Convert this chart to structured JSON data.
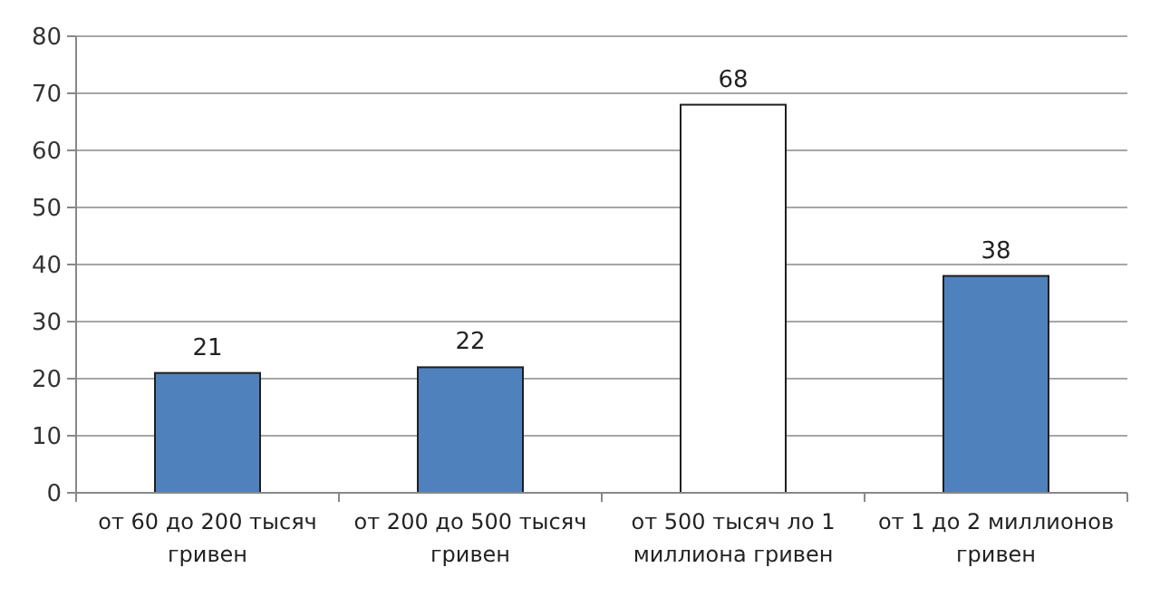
{
  "chart_data": {
    "type": "bar",
    "categories": [
      "от 60 до 200 тысяч гривен",
      "от 200 до 500 тысяч гривен",
      "от 500 тысяч ло 1 миллиона гривен",
      "от 1 до 2 миллионов гривен"
    ],
    "values": [
      21,
      22,
      68,
      38
    ],
    "colors": [
      "#4f81bd",
      "#4f81bd",
      "#ffffff",
      "#4f81bd"
    ],
    "ylim": [
      0,
      80
    ],
    "yticks": [
      0,
      10,
      20,
      30,
      40,
      50,
      60,
      70,
      80
    ],
    "grid": "y",
    "data_labels": true
  }
}
